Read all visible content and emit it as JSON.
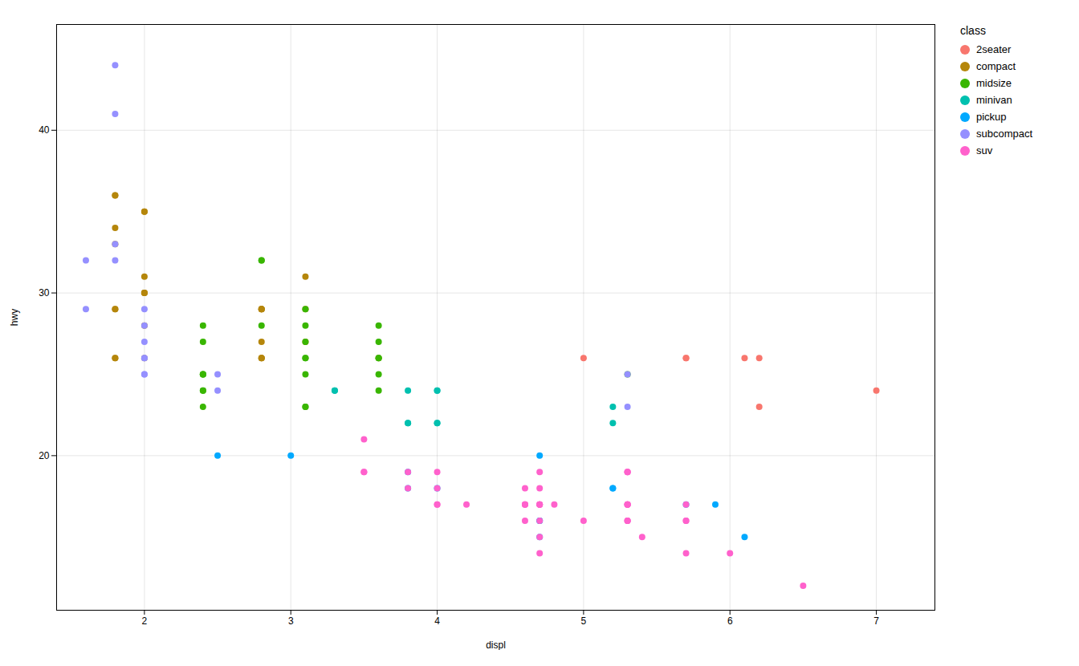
{
  "chart_data": {
    "type": "scatter",
    "xlabel": "displ",
    "ylabel": "hwy",
    "legend_title": "class",
    "legend": "right",
    "grid": true,
    "xlim": [
      1.4,
      7.4
    ],
    "ylim": [
      10.5,
      46.5
    ],
    "xticks": [
      2,
      3,
      4,
      5,
      6,
      7
    ],
    "yticks": [
      20,
      30,
      40
    ],
    "series": [
      {
        "name": "2seater",
        "color": "#F8766D",
        "x": [
          5.0,
          5.7,
          5.7,
          6.1,
          6.2,
          7.0,
          6.2
        ],
        "values": [
          26,
          26,
          26,
          26,
          26,
          24,
          23
        ]
      },
      {
        "name": "compact",
        "color": "#B5860B",
        "x": [
          1.8,
          1.8,
          2.0,
          2.0,
          2.8,
          2.8,
          3.1,
          1.8,
          1.8,
          2.0,
          2.0,
          2.8,
          2.8,
          3.1,
          1.8,
          1.8,
          2.0,
          2.0,
          2.8,
          2.8,
          3.1,
          1.8,
          1.8,
          2.0,
          2.0,
          2.8,
          2.8,
          3.6
        ],
        "values": [
          29,
          29,
          31,
          30,
          26,
          26,
          27,
          26,
          26,
          28,
          26,
          29,
          27,
          29,
          36,
          36,
          35,
          35,
          29,
          29,
          31,
          34,
          33,
          30,
          30,
          26,
          29,
          26
        ]
      },
      {
        "name": "midsize",
        "color": "#39B600",
        "x": [
          2.4,
          2.4,
          3.1,
          2.4,
          2.4,
          3.1,
          3.6,
          2.4,
          2.4,
          3.1,
          2.4,
          2.4,
          3.1,
          2.8,
          2.8,
          3.1,
          3.1,
          2.8,
          3.1,
          3.1,
          3.6,
          3.6,
          3.6,
          3.6,
          5.3,
          3.6
        ],
        "values": [
          24,
          24,
          27,
          28,
          25,
          25,
          26,
          27,
          25,
          23,
          25,
          23,
          23,
          32,
          32,
          29,
          28,
          28,
          26,
          26,
          27,
          26,
          25,
          24,
          25,
          28
        ]
      },
      {
        "name": "minivan",
        "color": "#00C0AF",
        "x": [
          3.3,
          3.8,
          3.8,
          3.8,
          4.0,
          4.0,
          4.0,
          4.0,
          3.3,
          5.2,
          5.2
        ],
        "values": [
          24,
          22,
          22,
          24,
          24,
          24,
          22,
          22,
          24,
          23,
          22
        ]
      },
      {
        "name": "pickup",
        "color": "#00A9FF",
        "x": [
          2.5,
          3.0,
          3.8,
          3.8,
          4.0,
          4.7,
          4.7,
          4.7,
          5.2,
          5.2,
          5.7,
          5.9,
          4.7,
          6.1
        ],
        "values": [
          20,
          20,
          19,
          18,
          18,
          16,
          16,
          15,
          18,
          18,
          17,
          17,
          20,
          15
        ]
      },
      {
        "name": "subcompact",
        "color": "#9590FF",
        "x": [
          1.8,
          1.8,
          1.8,
          1.8,
          2.0,
          2.0,
          2.0,
          2.0,
          2.0,
          2.0,
          2.5,
          5.3,
          5.3,
          1.6,
          1.6,
          2.0,
          2.5
        ],
        "values": [
          44,
          41,
          33,
          32,
          29,
          28,
          26,
          27,
          25,
          25,
          25,
          25,
          23,
          32,
          29,
          26,
          24
        ]
      },
      {
        "name": "suv",
        "color": "#FF61CC",
        "x": [
          3.5,
          3.5,
          3.5,
          3.8,
          3.8,
          4.0,
          4.0,
          4.0,
          4.0,
          4.6,
          4.6,
          4.6,
          4.6,
          5.4,
          4.7,
          4.7,
          4.7,
          4.7,
          4.7,
          4.7,
          4.7,
          4.7,
          5.3,
          5.3,
          5.3,
          5.3,
          5.3,
          5.7,
          5.7,
          6.0,
          5.3,
          5.3,
          5.3,
          5.7,
          6.5,
          4.6,
          5.0,
          5.3,
          4.2,
          4.7,
          4.8,
          5.3,
          5.7
        ],
        "values": [
          21,
          19,
          19,
          19,
          18,
          19,
          18,
          17,
          17,
          17,
          18,
          17,
          16,
          15,
          19,
          18,
          17,
          17,
          17,
          16,
          15,
          14,
          19,
          19,
          17,
          17,
          16,
          14,
          16,
          14,
          16,
          17,
          16,
          16,
          12,
          17,
          16,
          17,
          17,
          17,
          17,
          19,
          17
        ]
      }
    ]
  }
}
